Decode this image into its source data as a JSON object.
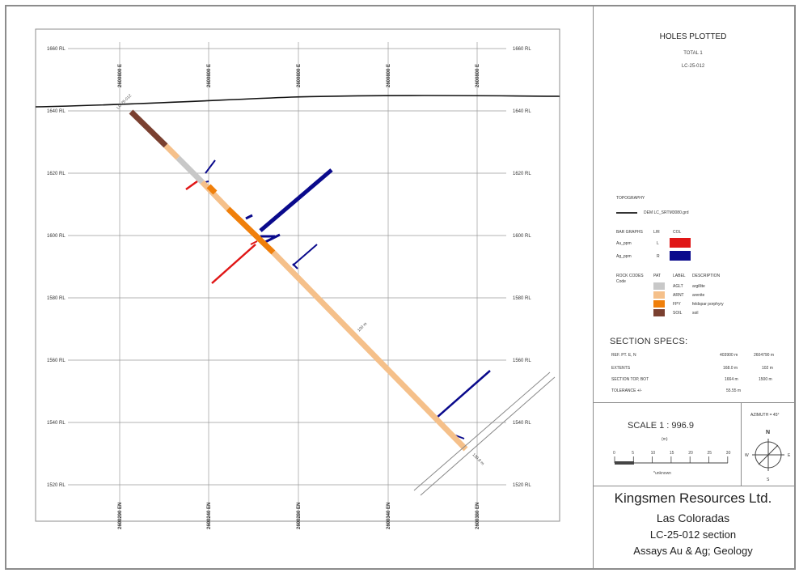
{
  "section": {
    "rl_labels": [
      "1660 RL",
      "1640 RL",
      "1620 RL",
      "1600 RL",
      "1580 RL",
      "1560 RL",
      "1540 RL",
      "1520 RL"
    ],
    "top_easting_labels": [
      "2600800 E",
      "2600800 E",
      "2600800 E",
      "2600800 E",
      "2600800 E"
    ],
    "bottom_northing_labels": [
      "2600290 EN",
      "2600240 EN",
      "2600280 EN",
      "2600340 EN",
      "2600380 EN"
    ],
    "collar_label": "LC-25-012",
    "depth_label": "100 m",
    "end_label": "130.8 m"
  },
  "holes_plotted": {
    "heading": "HOLES PLOTTED",
    "total": "TOTAL 1",
    "hole": "LC-25-012"
  },
  "legend": {
    "topography_heading": "TOPOGRAPHY",
    "topography_file": "DEM LC_SRTM3080.grd",
    "bar_graphs_heading": "BAR GRAPHS",
    "bar_graphs_lr": "L/R",
    "bar_graphs_col": "COL",
    "bars": [
      {
        "name": "Au_ppm",
        "side": "L",
        "color": "#e01616"
      },
      {
        "name": "Ag_ppm",
        "side": "R",
        "color": "#0a0a8c"
      }
    ],
    "rock_codes_heading": "ROCK CODES",
    "rock_code_sub": "Code",
    "pat_heading": "PAT",
    "label_heading": "LABEL",
    "description_heading": "DESCRIPTION",
    "rocks": [
      {
        "label": "AGLT",
        "description": "argillite",
        "color": "#c8c8c8"
      },
      {
        "label": "ARNT",
        "description": "arenite",
        "color": "#f5c08a"
      },
      {
        "label": "FPY",
        "description": "feldspar porphyry",
        "color": "#f07f0a"
      },
      {
        "label": "SOIL",
        "description": "soil",
        "color": "#7a4030"
      }
    ]
  },
  "section_specs": {
    "title": "SECTION  SPECS:",
    "rows": [
      {
        "label": "REF. PT.  E, N",
        "v1": "403900 m",
        "v2": "2604790 m"
      },
      {
        "label": "EXTENTS",
        "v1": "168.0 m",
        "v2": "102 m"
      },
      {
        "label": "SECTION TOP, BOT",
        "v1": "1664 m",
        "v2": "1500 m"
      },
      {
        "label": "TOLERANCE +/-",
        "v1": "55.55 m",
        "v2": ""
      }
    ]
  },
  "scale": {
    "title": "SCALE  1 : 996.9",
    "unit": "(m)",
    "ticks": [
      "0",
      "5",
      "10",
      "15",
      "20",
      "25",
      "30"
    ],
    "caption": "*unknown"
  },
  "azimuth": {
    "label": "AZIMUTH = 45°",
    "n": "N",
    "s": "S",
    "e": "E",
    "w": "W"
  },
  "company": {
    "name": "Kingsmen Resources Ltd.",
    "project": "Las Coloradas",
    "section": "LC-25-012 section",
    "subtitle": "Assays Au & Ag; Geology"
  },
  "colors": {
    "topography": "#111111",
    "gold": "#e01616",
    "silver": "#0a0a8c",
    "soil": "#7a4030",
    "arenite": "#f5c08a",
    "argillite": "#c8c8c8",
    "feldspar_porphyry": "#f07f0a",
    "grid": "#9a9a9a"
  }
}
